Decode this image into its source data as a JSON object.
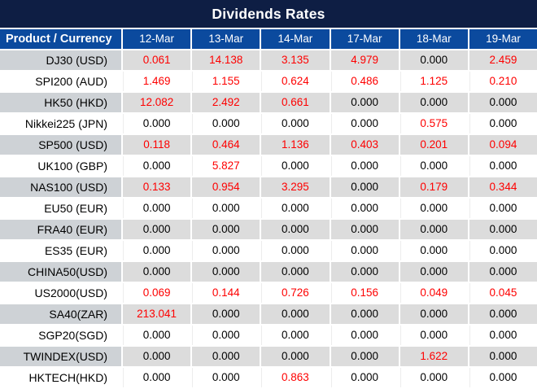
{
  "title": "Dividends Rates",
  "colors": {
    "title_bg": "#0e1e44",
    "header_bg": "#0b4a9e",
    "alt_row_product_bg": "#ced2d6",
    "alt_row_bg": "#dcdcdc",
    "rate_highlight_red": "#fe0000",
    "rate_normal": "#000000"
  },
  "table": {
    "product_header": "Product / Currency",
    "date_headers": [
      "12-Mar",
      "13-Mar",
      "14-Mar",
      "17-Mar",
      "18-Mar",
      "19-Mar"
    ],
    "rows": [
      {
        "product": "DJ30 (USD)",
        "values": [
          "0.061",
          "14.138",
          "3.135",
          "4.979",
          "0.000",
          "2.459"
        ],
        "red": [
          true,
          true,
          true,
          true,
          false,
          true
        ]
      },
      {
        "product": "SPI200 (AUD)",
        "values": [
          "1.469",
          "1.155",
          "0.624",
          "0.486",
          "1.125",
          "0.210"
        ],
        "red": [
          true,
          true,
          true,
          true,
          true,
          true
        ]
      },
      {
        "product": "HK50 (HKD)",
        "values": [
          "12.082",
          "2.492",
          "0.661",
          "0.000",
          "0.000",
          "0.000"
        ],
        "red": [
          true,
          true,
          true,
          false,
          false,
          false
        ]
      },
      {
        "product": "Nikkei225 (JPN)",
        "values": [
          "0.000",
          "0.000",
          "0.000",
          "0.000",
          "0.575",
          "0.000"
        ],
        "red": [
          false,
          false,
          false,
          false,
          true,
          false
        ]
      },
      {
        "product": "SP500 (USD)",
        "values": [
          "0.118",
          "0.464",
          "1.136",
          "0.403",
          "0.201",
          "0.094"
        ],
        "red": [
          true,
          true,
          true,
          true,
          true,
          true
        ]
      },
      {
        "product": "UK100 (GBP)",
        "values": [
          "0.000",
          "5.827",
          "0.000",
          "0.000",
          "0.000",
          "0.000"
        ],
        "red": [
          false,
          true,
          false,
          false,
          false,
          false
        ]
      },
      {
        "product": "NAS100 (USD)",
        "values": [
          "0.133",
          "0.954",
          "3.295",
          "0.000",
          "0.179",
          "0.344"
        ],
        "red": [
          true,
          true,
          true,
          false,
          true,
          true
        ]
      },
      {
        "product": "EU50 (EUR)",
        "values": [
          "0.000",
          "0.000",
          "0.000",
          "0.000",
          "0.000",
          "0.000"
        ],
        "red": [
          false,
          false,
          false,
          false,
          false,
          false
        ]
      },
      {
        "product": "FRA40 (EUR)",
        "values": [
          "0.000",
          "0.000",
          "0.000",
          "0.000",
          "0.000",
          "0.000"
        ],
        "red": [
          false,
          false,
          false,
          false,
          false,
          false
        ]
      },
      {
        "product": "ES35 (EUR)",
        "values": [
          "0.000",
          "0.000",
          "0.000",
          "0.000",
          "0.000",
          "0.000"
        ],
        "red": [
          false,
          false,
          false,
          false,
          false,
          false
        ]
      },
      {
        "product": "CHINA50(USD)",
        "values": [
          "0.000",
          "0.000",
          "0.000",
          "0.000",
          "0.000",
          "0.000"
        ],
        "red": [
          false,
          false,
          false,
          false,
          false,
          false
        ]
      },
      {
        "product": "US2000(USD)",
        "values": [
          "0.069",
          "0.144",
          "0.726",
          "0.156",
          "0.049",
          "0.045"
        ],
        "red": [
          true,
          true,
          true,
          true,
          true,
          true
        ]
      },
      {
        "product": "SA40(ZAR)",
        "values": [
          "213.041",
          "0.000",
          "0.000",
          "0.000",
          "0.000",
          "0.000"
        ],
        "red": [
          true,
          false,
          false,
          false,
          false,
          false
        ]
      },
      {
        "product": "SGP20(SGD)",
        "values": [
          "0.000",
          "0.000",
          "0.000",
          "0.000",
          "0.000",
          "0.000"
        ],
        "red": [
          false,
          false,
          false,
          false,
          false,
          false
        ]
      },
      {
        "product": "TWINDEX(USD)",
        "values": [
          "0.000",
          "0.000",
          "0.000",
          "0.000",
          "1.622",
          "0.000"
        ],
        "red": [
          false,
          false,
          false,
          false,
          true,
          false
        ]
      },
      {
        "product": "HKTECH(HKD)",
        "values": [
          "0.000",
          "0.000",
          "0.863",
          "0.000",
          "0.000",
          "0.000"
        ],
        "red": [
          false,
          false,
          true,
          false,
          false,
          false
        ]
      }
    ]
  },
  "chart_data": {
    "type": "table",
    "title": "Dividends Rates",
    "columns": [
      "Product / Currency",
      "12-Mar",
      "13-Mar",
      "14-Mar",
      "17-Mar",
      "18-Mar",
      "19-Mar"
    ],
    "rows": [
      [
        "DJ30 (USD)",
        0.061,
        14.138,
        3.135,
        4.979,
        0.0,
        2.459
      ],
      [
        "SPI200 (AUD)",
        1.469,
        1.155,
        0.624,
        0.486,
        1.125,
        0.21
      ],
      [
        "HK50 (HKD)",
        12.082,
        2.492,
        0.661,
        0.0,
        0.0,
        0.0
      ],
      [
        "Nikkei225 (JPN)",
        0.0,
        0.0,
        0.0,
        0.0,
        0.575,
        0.0
      ],
      [
        "SP500 (USD)",
        0.118,
        0.464,
        1.136,
        0.403,
        0.201,
        0.094
      ],
      [
        "UK100 (GBP)",
        0.0,
        5.827,
        0.0,
        0.0,
        0.0,
        0.0
      ],
      [
        "NAS100 (USD)",
        0.133,
        0.954,
        3.295,
        0.0,
        0.179,
        0.344
      ],
      [
        "EU50 (EUR)",
        0.0,
        0.0,
        0.0,
        0.0,
        0.0,
        0.0
      ],
      [
        "FRA40 (EUR)",
        0.0,
        0.0,
        0.0,
        0.0,
        0.0,
        0.0
      ],
      [
        "ES35 (EUR)",
        0.0,
        0.0,
        0.0,
        0.0,
        0.0,
        0.0
      ],
      [
        "CHINA50(USD)",
        0.0,
        0.0,
        0.0,
        0.0,
        0.0,
        0.0
      ],
      [
        "US2000(USD)",
        0.069,
        0.144,
        0.726,
        0.156,
        0.049,
        0.045
      ],
      [
        "SA40(ZAR)",
        213.041,
        0.0,
        0.0,
        0.0,
        0.0,
        0.0
      ],
      [
        "SGP20(SGD)",
        0.0,
        0.0,
        0.0,
        0.0,
        0.0,
        0.0
      ],
      [
        "TWINDEX(USD)",
        0.0,
        0.0,
        0.0,
        0.0,
        1.622,
        0.0
      ],
      [
        "HKTECH(HKD)",
        0.0,
        0.0,
        0.863,
        0.0,
        0.0,
        0.0
      ]
    ],
    "notes": "Red cells indicate non-zero dividend rate highlights; layout is a striped data table with navy title bar and blue header row"
  }
}
